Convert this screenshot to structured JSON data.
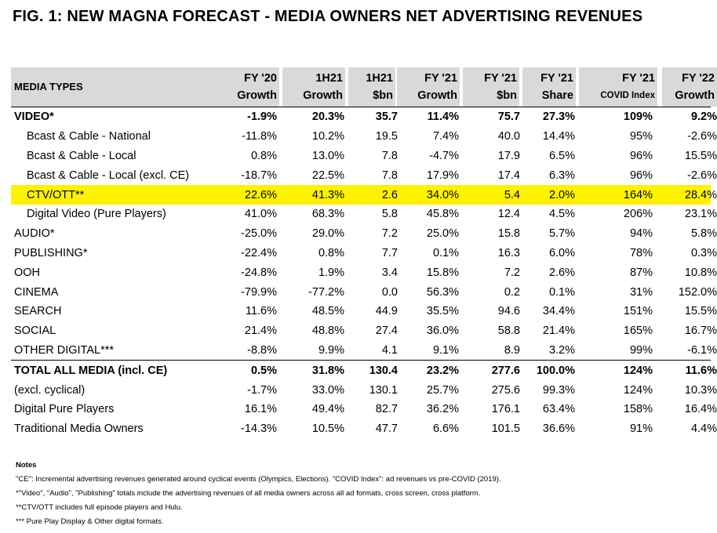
{
  "title": "FIG. 1: NEW MAGNA FORECAST - MEDIA OWNERS NET ADVERTISING REVENUES",
  "header": {
    "first": "MEDIA TYPES",
    "cols": [
      {
        "l1": "FY '20",
        "l2": "Growth"
      },
      {
        "l1": "1H21",
        "l2": "Growth"
      },
      {
        "l1": "1H21",
        "l2": "$bn"
      },
      {
        "l1": "FY '21",
        "l2": "Growth"
      },
      {
        "l1": "FY '21",
        "l2": "$bn"
      },
      {
        "l1": "FY '21",
        "l2": "Share"
      },
      {
        "l1": "FY '21",
        "l2": "COVID Index"
      },
      {
        "l1": "FY '22",
        "l2": "Growth"
      }
    ]
  },
  "rows": [
    {
      "name": "VIDEO*",
      "v": [
        "-1.9%",
        "20.3%",
        "35.7",
        "11.4%",
        "75.7",
        "27.3%",
        "109%",
        "9.2%"
      ]
    },
    {
      "name": "Bcast & Cable - National",
      "v": [
        "-11.8%",
        "10.2%",
        "19.5",
        "7.4%",
        "40.0",
        "14.4%",
        "95%",
        "-2.6%"
      ]
    },
    {
      "name": "Bcast & Cable - Local",
      "v": [
        "0.8%",
        "13.0%",
        "7.8",
        "-4.7%",
        "17.9",
        "6.5%",
        "96%",
        "15.5%"
      ]
    },
    {
      "name": "Bcast & Cable - Local (excl. CE)",
      "v": [
        "-18.7%",
        "22.5%",
        "7.8",
        "17.9%",
        "17.4",
        "6.3%",
        "96%",
        "-2.6%"
      ]
    },
    {
      "name": "CTV/OTT**",
      "v": [
        "22.6%",
        "41.3%",
        "2.6",
        "34.0%",
        "5.4",
        "2.0%",
        "164%",
        "28.4%"
      ]
    },
    {
      "name": "Digital Video (Pure Players)",
      "v": [
        "41.0%",
        "68.3%",
        "5.8",
        "45.8%",
        "12.4",
        "4.5%",
        "206%",
        "23.1%"
      ]
    },
    {
      "name": "AUDIO*",
      "v": [
        "-25.0%",
        "29.0%",
        "7.2",
        "25.0%",
        "15.8",
        "5.7%",
        "94%",
        "5.8%"
      ]
    },
    {
      "name": "PUBLISHING*",
      "v": [
        "-22.4%",
        "0.8%",
        "7.7",
        "0.1%",
        "16.3",
        "6.0%",
        "78%",
        "0.3%"
      ]
    },
    {
      "name": "OOH",
      "v": [
        "-24.8%",
        "1.9%",
        "3.4",
        "15.8%",
        "7.2",
        "2.6%",
        "87%",
        "10.8%"
      ]
    },
    {
      "name": "CINEMA",
      "v": [
        "-79.9%",
        "-77.2%",
        "0.0",
        "56.3%",
        "0.2",
        "0.1%",
        "31%",
        "152.0%"
      ]
    },
    {
      "name": "SEARCH",
      "v": [
        "11.6%",
        "48.5%",
        "44.9",
        "35.5%",
        "94.6",
        "34.4%",
        "151%",
        "15.5%"
      ]
    },
    {
      "name": "SOCIAL",
      "v": [
        "21.4%",
        "48.8%",
        "27.4",
        "36.0%",
        "58.8",
        "21.4%",
        "165%",
        "16.7%"
      ]
    },
    {
      "name": "OTHER DIGITAL***",
      "v": [
        "-8.8%",
        "9.9%",
        "4.1",
        "9.1%",
        "8.9",
        "3.2%",
        "99%",
        "-6.1%"
      ]
    },
    {
      "name": "TOTAL ALL MEDIA (incl. CE)",
      "v": [
        "0.5%",
        "31.8%",
        "130.4",
        "23.2%",
        "277.6",
        "100.0%",
        "124%",
        "11.6%"
      ]
    },
    {
      "name": "(excl. cyclical)",
      "v": [
        "-1.7%",
        "33.0%",
        "130.1",
        "25.7%",
        "275.6",
        "99.3%",
        "124%",
        "10.3%"
      ]
    },
    {
      "name": "Digital Pure Players",
      "v": [
        "16.1%",
        "49.4%",
        "82.7",
        "36.2%",
        "176.1",
        "63.4%",
        "158%",
        "16.4%"
      ]
    },
    {
      "name": "Traditional Media Owners",
      "v": [
        "-14.3%",
        "10.5%",
        "47.7",
        "6.6%",
        "101.5",
        "36.6%",
        "91%",
        "4.4%"
      ]
    }
  ],
  "notes": {
    "heading": "Notes",
    "lines": [
      "\"CE\": Incremental advertising revenues generated around cyclical events (Olympics, Elections). \"COVID Index\": ad revenues vs pre-COVID (2019).",
      "*\"Video\", \"Audio\", \"Publishing\" totals include the advertising revenues of all media owners across all ad formats, cross screen, cross platform.",
      "**CTV/OTT includes full episode players and Hulu.",
      "*** Pure Play Display & Other digital formats."
    ]
  },
  "colors": {
    "highlight": "#fff200",
    "header_bg": "#d9d9d9"
  }
}
